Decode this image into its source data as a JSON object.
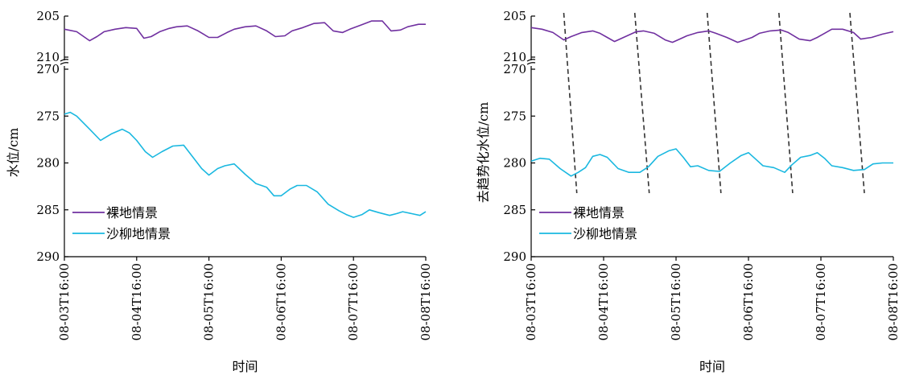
{
  "chart_data": [
    {
      "type": "line",
      "panel": "left",
      "xlabel": "时间",
      "ylabel": "水位/cm",
      "y_axis_inverted": true,
      "y_axis_broken": true,
      "upper_segment": {
        "ylim": [
          205,
          210
        ],
        "ticks": [
          "205",
          "210"
        ]
      },
      "lower_segment": {
        "ylim": [
          270,
          290
        ],
        "ticks": [
          "270",
          "275",
          "280",
          "285",
          "290"
        ]
      },
      "x": [
        "08-03T16:00",
        "08-04T16:00",
        "08-05T16:00",
        "08-06T16:00",
        "08-07T16:00",
        "08-08T16:00"
      ],
      "x_ticks": [
        "08-03T16:00",
        "08-04T16:00",
        "08-05T16:00",
        "08-06T16:00",
        "08-07T16:00",
        "08-08T16:00"
      ],
      "legend_position": "lower-left",
      "series": [
        {
          "name": "裸地情景",
          "color": "#7030a0",
          "x": [
            0,
            0.17,
            0.35,
            0.45,
            0.55,
            0.7,
            0.85,
            1.0,
            1.1,
            1.2,
            1.32,
            1.45,
            1.55,
            1.7,
            1.85,
            2.0,
            2.12,
            2.25,
            2.35,
            2.5,
            2.65,
            2.8,
            2.92,
            3.05,
            3.15,
            3.3,
            3.45,
            3.6,
            3.72,
            3.85,
            3.95,
            4.1,
            4.25,
            4.4,
            4.52,
            4.65,
            4.75,
            4.9,
            5.0
          ],
          "values": [
            206.6,
            206.9,
            208.0,
            207.5,
            206.9,
            206.6,
            206.4,
            206.5,
            207.7,
            207.5,
            206.9,
            206.5,
            206.3,
            206.2,
            206.8,
            207.6,
            207.6,
            207.0,
            206.6,
            206.3,
            206.2,
            206.8,
            207.5,
            207.4,
            206.8,
            206.4,
            205.9,
            205.8,
            206.8,
            207.0,
            206.6,
            206.1,
            205.6,
            205.6,
            206.8,
            206.7,
            206.3,
            206.0,
            206.0
          ]
        },
        {
          "name": "沙柳地情景",
          "color": "#1ab8e0",
          "x": [
            0,
            0.08,
            0.17,
            0.35,
            0.5,
            0.65,
            0.8,
            0.9,
            1.0,
            1.12,
            1.22,
            1.35,
            1.5,
            1.65,
            1.8,
            1.9,
            2.0,
            2.12,
            2.22,
            2.35,
            2.5,
            2.65,
            2.8,
            2.9,
            3.0,
            3.12,
            3.22,
            3.35,
            3.5,
            3.65,
            3.8,
            3.9,
            4.0,
            4.12,
            4.22,
            4.35,
            4.5,
            4.6,
            4.68,
            4.8,
            4.92,
            5.0
          ],
          "values": [
            274.8,
            274.6,
            275.0,
            276.4,
            277.6,
            276.9,
            276.4,
            276.8,
            277.6,
            278.8,
            279.4,
            278.8,
            278.2,
            278.1,
            279.6,
            280.6,
            281.3,
            280.6,
            280.3,
            280.1,
            281.2,
            282.2,
            282.6,
            283.5,
            283.5,
            282.8,
            282.4,
            282.4,
            283.1,
            284.4,
            285.1,
            285.5,
            285.8,
            285.5,
            285.0,
            285.3,
            285.6,
            285.4,
            285.2,
            285.4,
            285.6,
            285.2
          ]
        }
      ]
    },
    {
      "type": "line",
      "panel": "right",
      "xlabel": "时间",
      "ylabel": "去趋势化水位/cm",
      "y_axis_inverted": true,
      "y_axis_broken": true,
      "upper_segment": {
        "ylim": [
          205,
          210
        ],
        "ticks": [
          "205",
          "210"
        ]
      },
      "lower_segment": {
        "ylim": [
          270,
          290
        ],
        "ticks": [
          "270",
          "275",
          "280",
          "285",
          "290"
        ]
      },
      "x": [
        "08-03T16:00",
        "08-04T16:00",
        "08-05T16:00",
        "08-06T16:00",
        "08-07T16:00",
        "08-08T16:00"
      ],
      "x_ticks": [
        "08-03T16:00",
        "08-04T16:00",
        "08-05T16:00",
        "08-06T16:00",
        "08-07T16:00",
        "08-08T16:00"
      ],
      "legend_position": "lower-left",
      "dashed_lines": [
        {
          "top": 0.45,
          "bottom": 0.63
        },
        {
          "top": 1.43,
          "bottom": 1.63
        },
        {
          "top": 2.43,
          "bottom": 2.62
        },
        {
          "top": 3.42,
          "bottom": 3.61
        },
        {
          "top": 4.4,
          "bottom": 4.6
        }
      ],
      "series": [
        {
          "name": "裸地情景",
          "color": "#7030a0",
          "x": [
            0,
            0.15,
            0.3,
            0.45,
            0.55,
            0.7,
            0.85,
            0.95,
            1.05,
            1.15,
            1.3,
            1.45,
            1.55,
            1.7,
            1.85,
            1.95,
            2.05,
            2.15,
            2.3,
            2.45,
            2.55,
            2.7,
            2.85,
            2.95,
            3.05,
            3.15,
            3.3,
            3.45,
            3.55,
            3.7,
            3.85,
            3.95,
            4.05,
            4.15,
            4.3,
            4.45,
            4.55,
            4.7,
            4.85,
            5.0
          ],
          "values": [
            206.4,
            206.6,
            207.0,
            207.9,
            207.5,
            207.0,
            206.8,
            207.1,
            207.6,
            208.1,
            207.5,
            206.9,
            206.8,
            207.1,
            207.9,
            208.2,
            207.8,
            207.4,
            207.0,
            206.8,
            207.1,
            207.6,
            208.2,
            207.9,
            207.6,
            207.1,
            206.8,
            206.7,
            207.0,
            207.8,
            208.0,
            207.6,
            207.1,
            206.6,
            206.6,
            207.0,
            207.8,
            207.6,
            207.2,
            206.9
          ]
        },
        {
          "name": "沙柳地情景",
          "color": "#1ab8e0",
          "x": [
            0,
            0.12,
            0.25,
            0.4,
            0.55,
            0.65,
            0.75,
            0.85,
            0.95,
            1.05,
            1.2,
            1.35,
            1.5,
            1.62,
            1.75,
            1.9,
            2.0,
            2.1,
            2.2,
            2.3,
            2.45,
            2.6,
            2.75,
            2.9,
            3.0,
            3.1,
            3.2,
            3.35,
            3.5,
            3.6,
            3.72,
            3.85,
            3.95,
            4.05,
            4.15,
            4.3,
            4.45,
            4.6,
            4.72,
            4.85,
            5.0
          ],
          "values": [
            279.8,
            279.5,
            279.6,
            280.6,
            281.4,
            281.0,
            280.5,
            279.3,
            279.1,
            279.4,
            280.6,
            281.0,
            281.0,
            280.4,
            279.3,
            278.7,
            278.5,
            279.4,
            280.4,
            280.3,
            280.8,
            280.9,
            280.0,
            279.2,
            278.9,
            279.6,
            280.3,
            280.5,
            281.0,
            280.2,
            279.4,
            279.2,
            278.9,
            279.5,
            280.3,
            280.5,
            280.8,
            280.7,
            280.1,
            280.0,
            280.0
          ]
        }
      ]
    }
  ]
}
